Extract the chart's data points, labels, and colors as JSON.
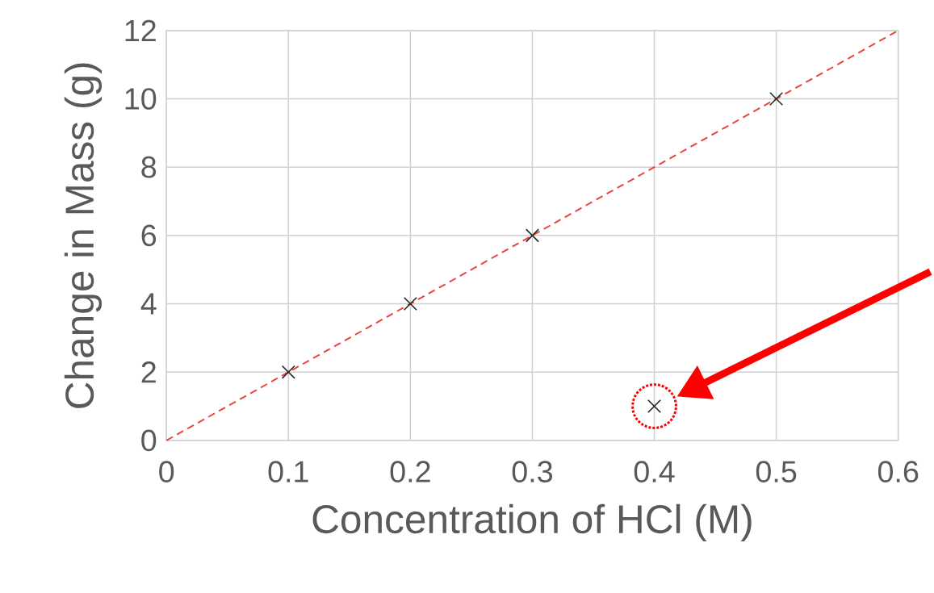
{
  "chart_data": {
    "type": "scatter",
    "xlabel": "Concentration of HCl (M)",
    "ylabel": "Change in Mass (g)",
    "xlim": [
      0,
      0.6
    ],
    "ylim": [
      0,
      12
    ],
    "xticks": [
      0,
      0.1,
      0.2,
      0.3,
      0.4,
      0.5,
      0.6
    ],
    "yticks": [
      0,
      2,
      4,
      6,
      8,
      10,
      12
    ],
    "grid": true,
    "series": [
      {
        "x": [
          0.1,
          0.2,
          0.3,
          0.4,
          0.5
        ],
        "values": [
          2,
          4,
          6,
          1,
          10
        ],
        "color": "#262626",
        "marker": "cross"
      },
      {
        "type": "line",
        "x": [
          0,
          0.6
        ],
        "values": [
          0,
          12
        ],
        "color": "#e8443a",
        "line_style": "dashed",
        "marker": "none"
      }
    ]
  }
}
